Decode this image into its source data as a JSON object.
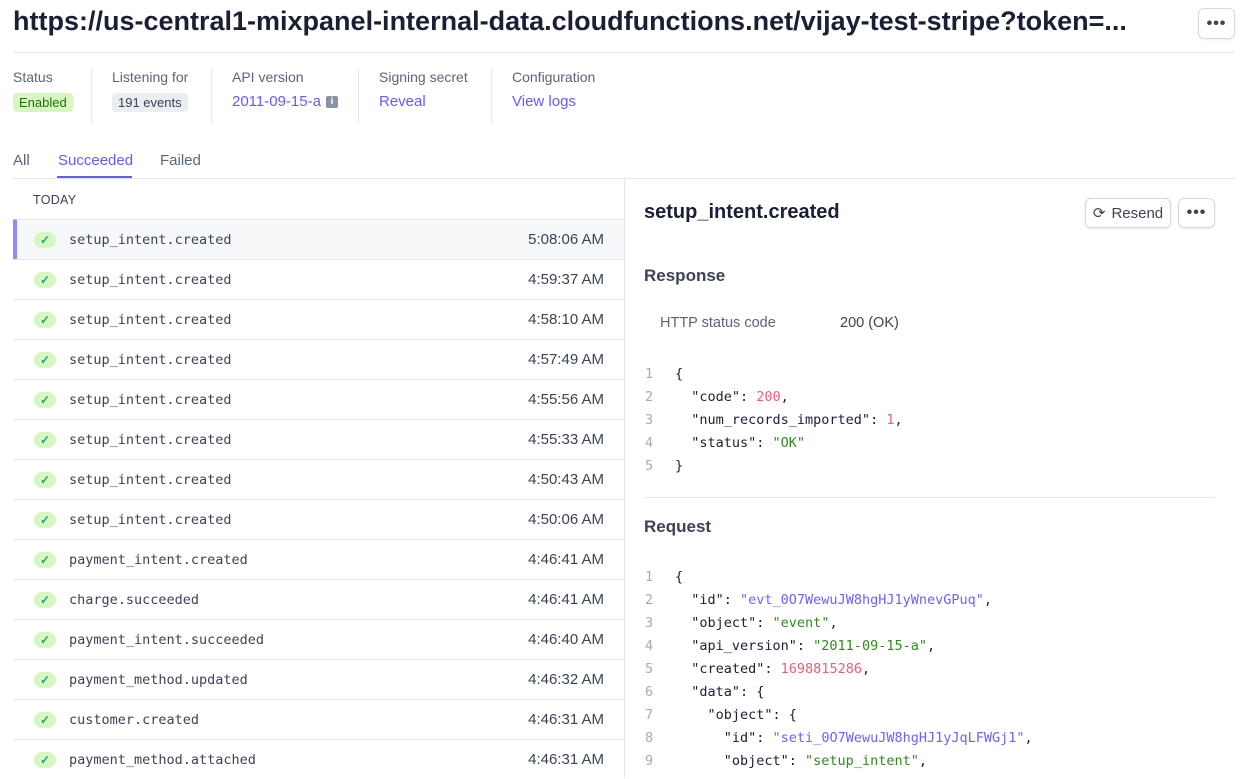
{
  "header": {
    "title": "https://us-central1-mixpanel-internal-data.cloudfunctions.net/vijay-test-stripe?token=...",
    "more_label": "•••"
  },
  "meta": [
    {
      "label": "Status",
      "value": "Enabled"
    },
    {
      "label": "Listening for",
      "value": "191 events"
    },
    {
      "label": "API version",
      "value": "2011-09-15-a"
    },
    {
      "label": "Signing secret",
      "value": "Reveal"
    },
    {
      "label": "Configuration",
      "value": "View logs"
    }
  ],
  "tabs": [
    {
      "label": "All"
    },
    {
      "label": "Succeeded",
      "active": true
    },
    {
      "label": "Failed"
    }
  ],
  "list": {
    "group": "TODAY",
    "events": [
      {
        "name": "setup_intent.created",
        "time": "5:08:06 AM"
      },
      {
        "name": "setup_intent.created",
        "time": "4:59:37 AM"
      },
      {
        "name": "setup_intent.created",
        "time": "4:58:10 AM"
      },
      {
        "name": "setup_intent.created",
        "time": "4:57:49 AM"
      },
      {
        "name": "setup_intent.created",
        "time": "4:55:56 AM"
      },
      {
        "name": "setup_intent.created",
        "time": "4:55:33 AM"
      },
      {
        "name": "setup_intent.created",
        "time": "4:50:43 AM"
      },
      {
        "name": "setup_intent.created",
        "time": "4:50:06 AM"
      },
      {
        "name": "payment_intent.created",
        "time": "4:46:41 AM"
      },
      {
        "name": "charge.succeeded",
        "time": "4:46:41 AM"
      },
      {
        "name": "payment_intent.succeeded",
        "time": "4:46:40 AM"
      },
      {
        "name": "payment_method.updated",
        "time": "4:46:32 AM"
      },
      {
        "name": "customer.created",
        "time": "4:46:31 AM"
      },
      {
        "name": "payment_method.attached",
        "time": "4:46:31 AM"
      }
    ]
  },
  "detail": {
    "title": "setup_intent.created",
    "resend_label": "Resend",
    "more_label": "•••",
    "response_heading": "Response",
    "status_label": "HTTP status code",
    "status_value": "200 (OK)",
    "response_code": [
      [
        [
          "k",
          "{"
        ]
      ],
      [
        [
          "k",
          "  \"code\": "
        ],
        [
          "n",
          "200"
        ],
        [
          "k",
          ","
        ]
      ],
      [
        [
          "k",
          "  \"num_records_imported\": "
        ],
        [
          "n",
          "1"
        ],
        [
          "k",
          ","
        ]
      ],
      [
        [
          "k",
          "  \"status\": "
        ],
        [
          "s",
          "\"OK\""
        ]
      ],
      [
        [
          "k",
          "}"
        ]
      ]
    ],
    "request_heading": "Request",
    "request_code": [
      [
        [
          "k",
          "{"
        ]
      ],
      [
        [
          "k",
          "  \"id\": "
        ],
        [
          "id",
          "\"evt_0O7WewuJW8hgHJ1yWnevGPuq\""
        ],
        [
          "k",
          ","
        ]
      ],
      [
        [
          "k",
          "  \"object\": "
        ],
        [
          "s",
          "\"event\""
        ],
        [
          "k",
          ","
        ]
      ],
      [
        [
          "k",
          "  \"api_version\": "
        ],
        [
          "s",
          "\"2011-09-15-a\""
        ],
        [
          "k",
          ","
        ]
      ],
      [
        [
          "k",
          "  \"created\": "
        ],
        [
          "n",
          "1698815286"
        ],
        [
          "k",
          ","
        ]
      ],
      [
        [
          "k",
          "  \"data\": {"
        ]
      ],
      [
        [
          "k",
          "    \"object\": {"
        ]
      ],
      [
        [
          "k",
          "      \"id\": "
        ],
        [
          "id",
          "\"seti_0O7WewuJW8hgHJ1yJqLFWGj1\""
        ],
        [
          "k",
          ","
        ]
      ],
      [
        [
          "k",
          "      \"object\": "
        ],
        [
          "s",
          "\"setup_intent\""
        ],
        [
          "k",
          ","
        ]
      ]
    ]
  }
}
